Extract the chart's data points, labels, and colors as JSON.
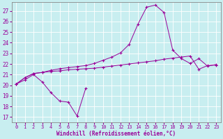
{
  "xlabel": "Windchill (Refroidissement éolien,°C)",
  "background_color": "#c8eef0",
  "line_color": "#990099",
  "grid_color": "#ffffff",
  "x_ticks": [
    0,
    1,
    2,
    3,
    4,
    5,
    6,
    7,
    8,
    9,
    10,
    11,
    12,
    13,
    14,
    15,
    16,
    17,
    18,
    19,
    20,
    21,
    22,
    23
  ],
  "yticks": [
    17,
    18,
    19,
    20,
    21,
    22,
    23,
    24,
    25,
    26,
    27
  ],
  "xlim": [
    -0.5,
    23.5
  ],
  "ylim": [
    16.5,
    27.8
  ],
  "line1_x": [
    0,
    1,
    2,
    3,
    4,
    5,
    6,
    7,
    8
  ],
  "line1_y": [
    20.1,
    20.5,
    21.0,
    20.3,
    19.3,
    18.5,
    18.4,
    17.1,
    19.7
  ],
  "line2_x": [
    0,
    1,
    2,
    3,
    4,
    5,
    6,
    7,
    8,
    9,
    10,
    11,
    12,
    13,
    14,
    15,
    16,
    17,
    18,
    19,
    20,
    21,
    22,
    23
  ],
  "line2_y": [
    20.1,
    20.7,
    21.1,
    21.2,
    21.3,
    21.35,
    21.45,
    21.5,
    21.55,
    21.6,
    21.7,
    21.8,
    21.9,
    22.0,
    22.1,
    22.2,
    22.3,
    22.45,
    22.55,
    22.65,
    22.75,
    21.5,
    21.85,
    21.9
  ],
  "line3_x": [
    0,
    1,
    2,
    3,
    4,
    5,
    6,
    7,
    8,
    9,
    10,
    11,
    12,
    13,
    14,
    15,
    16,
    17,
    18,
    19,
    20,
    21,
    22,
    23
  ],
  "line3_y": [
    20.1,
    20.7,
    21.1,
    21.2,
    21.4,
    21.55,
    21.65,
    21.75,
    21.85,
    22.05,
    22.35,
    22.65,
    23.05,
    23.85,
    25.75,
    27.35,
    27.55,
    26.85,
    23.3,
    22.5,
    22.05,
    22.5,
    21.8,
    21.95
  ]
}
